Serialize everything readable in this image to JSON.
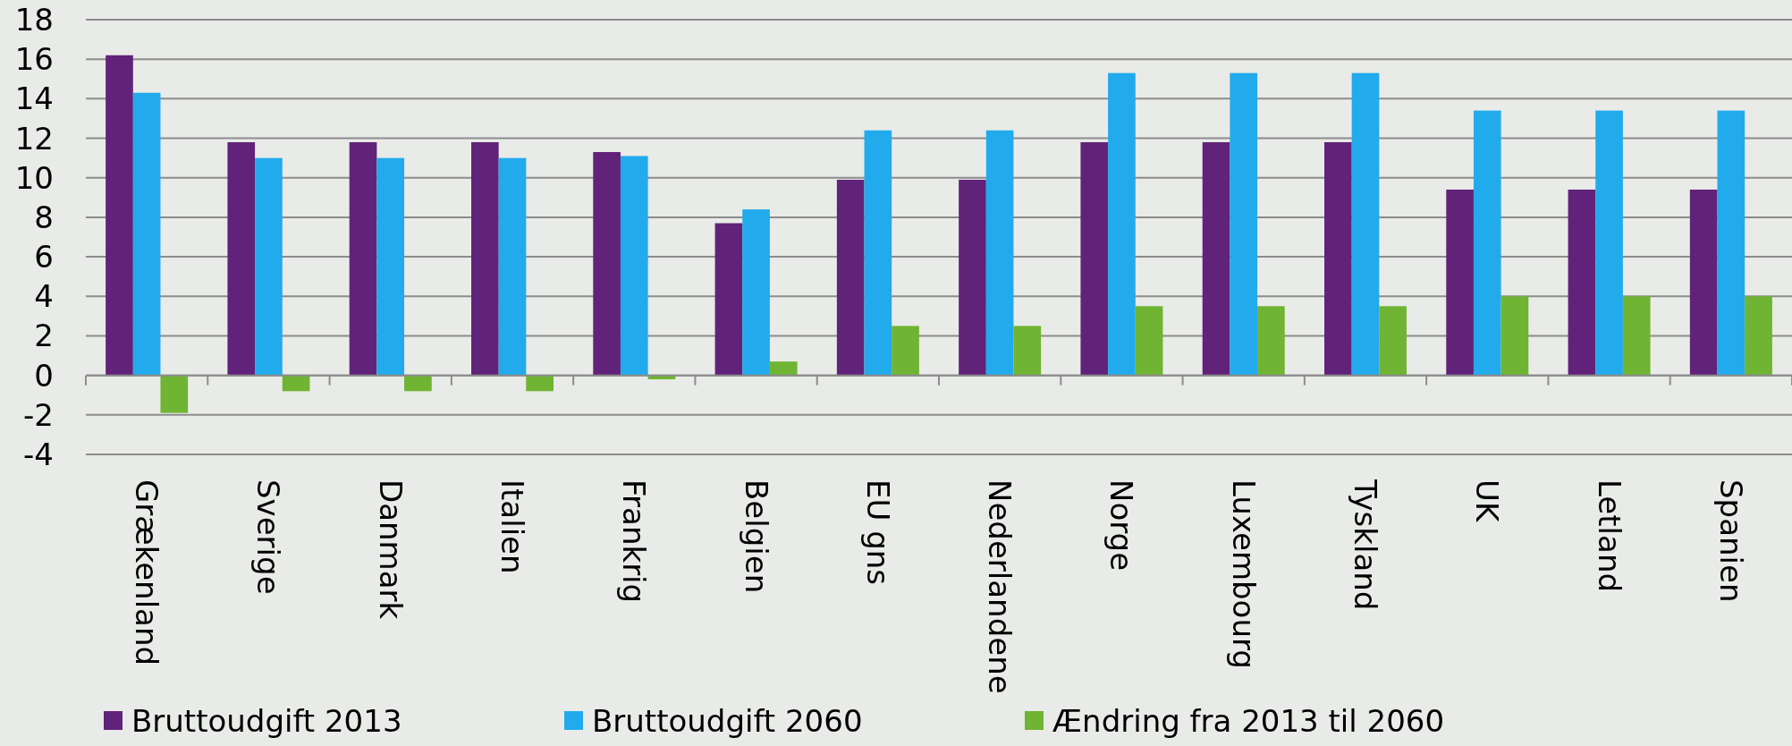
{
  "chart_data": {
    "type": "bar",
    "categories": [
      "Grækenland",
      "Sverige",
      "Danmark",
      "Italien",
      "Frankrig",
      "Belgien",
      "EU gns",
      "Nederlandene",
      "Norge",
      "Luxembourg",
      "Tyskland",
      "UK",
      "Letland",
      "Spanien"
    ],
    "series": [
      {
        "name": "Bruttoudgift 2013",
        "color": "#612379",
        "values": [
          16.2,
          11.8,
          11.8,
          11.8,
          11.3,
          7.7,
          9.9,
          9.9,
          11.8,
          11.8,
          11.8,
          9.4,
          9.4,
          9.4
        ]
      },
      {
        "name": "Bruttoudgift 2060",
        "color": "#22abec",
        "values": [
          14.3,
          11.0,
          11.0,
          11.0,
          11.1,
          8.4,
          12.4,
          12.4,
          15.3,
          15.3,
          15.3,
          13.4,
          13.4,
          13.4
        ]
      },
      {
        "name": "Ændring fra 2013 til 2060",
        "color": "#6fb432",
        "values": [
          -1.9,
          -0.8,
          -0.8,
          -0.8,
          -0.2,
          0.7,
          2.5,
          2.5,
          3.5,
          3.5,
          3.5,
          4.0,
          4.0,
          4.0
        ]
      }
    ],
    "ylim": [
      -4,
      18
    ],
    "yticks": [
      -4,
      -2,
      0,
      2,
      4,
      6,
      8,
      10,
      12,
      14,
      16,
      18
    ],
    "grid": "y",
    "legend": "bottom"
  }
}
